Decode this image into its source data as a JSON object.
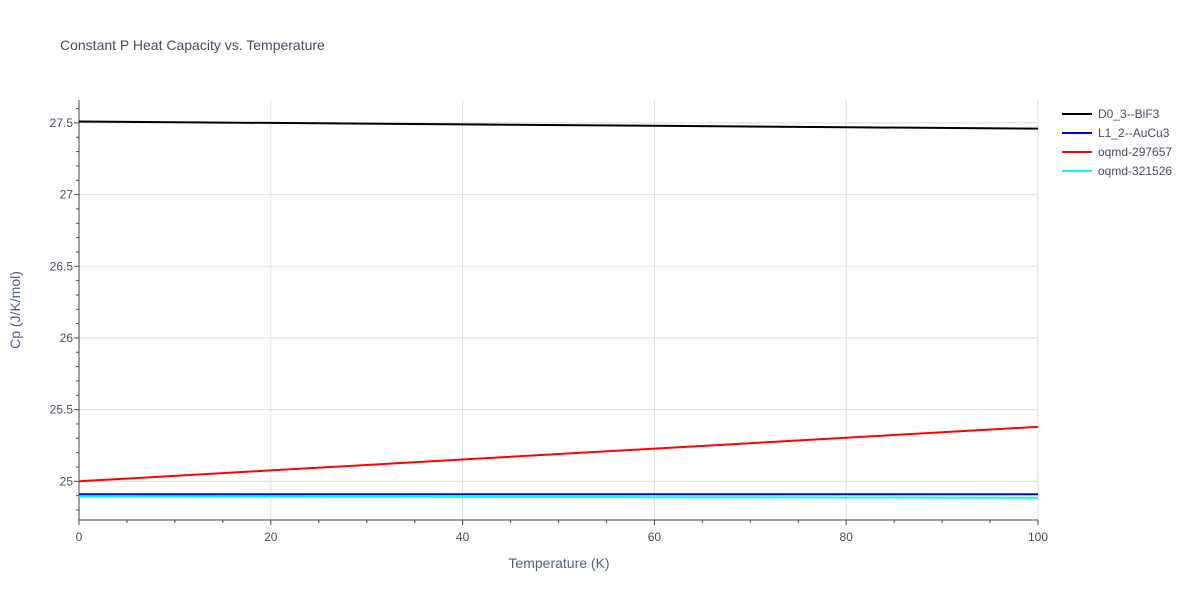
{
  "chart_data": {
    "type": "line",
    "title": "Constant P Heat Capacity vs. Temperature",
    "xlabel": "Temperature (K)",
    "ylabel": "Cp (J/K/mol)",
    "xlim": [
      0,
      100
    ],
    "ylim": [
      24.73,
      27.66
    ],
    "xticks": [
      0,
      20,
      40,
      60,
      80,
      100
    ],
    "xtick_labels": [
      "0",
      "20",
      "40",
      "60",
      "80",
      "100"
    ],
    "yticks": [
      25,
      25.5,
      26,
      26.5,
      27,
      27.5
    ],
    "ytick_labels": [
      "25",
      "25.5",
      "26",
      "26.5",
      "27",
      "27.5"
    ],
    "grid": true,
    "legend_position": "top-right",
    "series": [
      {
        "name": "D0_3--BiF3",
        "color": "#000000",
        "x": [
          0,
          20,
          40,
          60,
          80,
          100
        ],
        "values": [
          27.51,
          27.5,
          27.49,
          27.48,
          27.47,
          27.46
        ]
      },
      {
        "name": "L1_2--AuCu3",
        "color": "#0000ff",
        "x": [
          0,
          20,
          40,
          60,
          80,
          100
        ],
        "values": [
          24.91,
          24.91,
          24.91,
          24.91,
          24.91,
          24.91
        ]
      },
      {
        "name": "oqmd-297657",
        "color": "#ff0000",
        "x": [
          0,
          20,
          40,
          60,
          80,
          100
        ],
        "values": [
          25.0,
          25.076,
          25.152,
          25.228,
          25.304,
          25.38
        ]
      },
      {
        "name": "oqmd-321526",
        "color": "#00ffff",
        "x": [
          0,
          20,
          40,
          60,
          80,
          100
        ],
        "values": [
          24.895,
          24.893,
          24.891,
          24.889,
          24.887,
          24.885
        ]
      }
    ]
  }
}
